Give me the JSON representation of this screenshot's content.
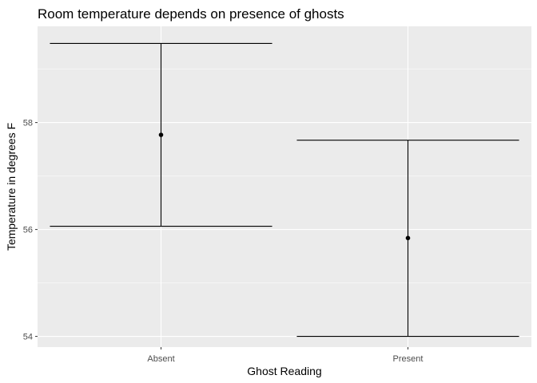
{
  "chart_data": {
    "type": "errorbar",
    "title": "Room temperature depends on presence of ghosts",
    "xlabel": "Ghost Reading",
    "ylabel": "Temperature in degrees F",
    "categories": [
      "Absent",
      "Present"
    ],
    "values": [
      57.77,
      55.84
    ],
    "lower": [
      56.06,
      54.0
    ],
    "upper": [
      59.48,
      57.67
    ],
    "ylim": [
      53.8,
      59.8
    ],
    "yticks": [
      54,
      56,
      58
    ],
    "ytick_labels": [
      "54",
      "56",
      "58"
    ],
    "grid": true,
    "legend": "none",
    "colors": {
      "panel_background": "#EBEBEB",
      "grid_line": "#FFFFFF",
      "mark": "#000000",
      "tick_label": "#4D4D4D"
    }
  }
}
